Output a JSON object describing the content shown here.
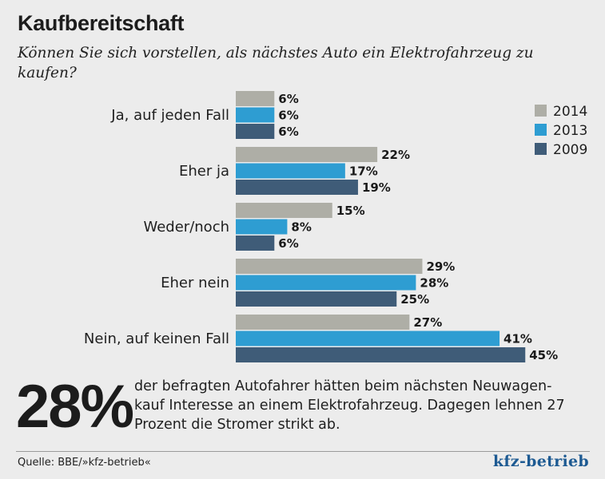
{
  "header": {
    "title": "Kaufbereitschaft",
    "subtitle": "Können Sie sich vorstellen, als nächstes Auto ein Elektrofahrzeug zu kaufen?"
  },
  "chart_data": {
    "type": "bar",
    "orientation": "horizontal",
    "title": "Kaufbereitschaft",
    "categories": [
      "Ja, auf jeden Fall",
      "Eher ja",
      "Weder/noch",
      "Eher nein",
      "Nein, auf keinen Fall"
    ],
    "series": [
      {
        "name": "2014",
        "color": "#aeaea6",
        "values": [
          6,
          22,
          15,
          29,
          27
        ]
      },
      {
        "name": "2013",
        "color": "#2e9dd2",
        "values": [
          6,
          17,
          8,
          28,
          41
        ]
      },
      {
        "name": "2009",
        "color": "#3f5c78",
        "values": [
          6,
          19,
          6,
          25,
          45
        ]
      }
    ],
    "value_suffix": "%",
    "xlim": [
      0,
      45
    ],
    "legend_position": "right",
    "grid": false,
    "xlabel": "",
    "ylabel": ""
  },
  "summary": {
    "big_number": "28%",
    "text": "der befragten Autofahrer hätten beim nächsten Neuwagen-kauf Interesse an einem Elektrofahrzeug. Dagegen lehnen 27 Prozent die Stromer strikt ab."
  },
  "footer": {
    "source": "Quelle: BBE/»kfz-betrieb«",
    "logo": "kfz-betrieb"
  }
}
